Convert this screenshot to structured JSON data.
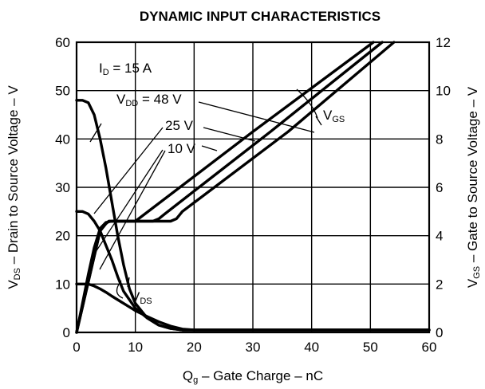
{
  "chart_data": {
    "type": "line",
    "title": "DYNAMIC INPUT CHARACTERISTICS",
    "xlabel": {
      "main": "Q",
      "sub": "g",
      "rest": " – Gate Charge – nC"
    },
    "ylabel_left": {
      "main": "V",
      "sub": "DS",
      "rest": " – Drain to Source Voltage – V"
    },
    "ylabel_right": {
      "main": "V",
      "sub": "GS",
      "rest": " – Gate to Source Voltage – V"
    },
    "xlim": [
      0,
      60
    ],
    "ylim_left": [
      0,
      60
    ],
    "ylim_right": [
      0,
      12
    ],
    "x_ticks": [
      "0",
      "10",
      "20",
      "30",
      "40",
      "50",
      "60"
    ],
    "y_left_ticks": [
      "0",
      "10",
      "20",
      "30",
      "40",
      "50",
      "60"
    ],
    "y_right_ticks": [
      "0",
      "2",
      "4",
      "6",
      "8",
      "10",
      "12"
    ],
    "grid": true,
    "annotations": {
      "id_label": {
        "main": "I",
        "sub": "D",
        "rest": " = 15 A"
      },
      "vdd_label": {
        "main": "V",
        "sub": "DD",
        "rest": " = 48 V"
      },
      "vdd_25": "25 V",
      "vdd_10": "10 V",
      "vgs_label": {
        "main": "V",
        "sub": "GS"
      },
      "vds_label": {
        "main": "V",
        "sub": "DS"
      }
    },
    "series": [
      {
        "name": "48 V",
        "quantity": "VDS",
        "axis": "left",
        "x": [
          0,
          1,
          2,
          3,
          4,
          5,
          6,
          7,
          8,
          9,
          10,
          12,
          14,
          16,
          18,
          20,
          60
        ],
        "y": [
          48,
          48,
          47.5,
          45,
          40,
          34,
          27,
          20,
          14,
          9,
          6,
          3,
          1.5,
          0.8,
          0.5,
          0.5,
          0.5
        ]
      },
      {
        "name": "25 V",
        "quantity": "VDS",
        "axis": "left",
        "x": [
          0,
          1,
          2,
          3,
          4,
          5,
          6,
          7,
          8,
          10,
          12,
          14,
          16,
          18,
          20,
          60
        ],
        "y": [
          25,
          25,
          24.5,
          23,
          21,
          18,
          15,
          11.5,
          8.5,
          5,
          3,
          1.5,
          0.8,
          0.5,
          0.5,
          0.5
        ]
      },
      {
        "name": "10 V",
        "quantity": "VDS",
        "axis": "left",
        "x": [
          0,
          1,
          2,
          3,
          4,
          5,
          6,
          8,
          10,
          12,
          14,
          16,
          18,
          20,
          60
        ],
        "y": [
          10,
          10,
          10,
          9.6,
          9,
          8.3,
          7.5,
          6,
          4.5,
          3.3,
          2.2,
          1.3,
          0.7,
          0.5,
          0.5
        ]
      },
      {
        "name": "10 V",
        "quantity": "VGS",
        "axis": "right",
        "x": [
          0,
          1,
          2,
          3,
          4,
          5,
          6,
          7,
          10,
          30,
          50.5
        ],
        "y": [
          0,
          1.2,
          2.4,
          3.5,
          4.3,
          4.55,
          4.6,
          4.6,
          4.6,
          8.3,
          12
        ]
      },
      {
        "name": "25 V",
        "quantity": "VGS",
        "axis": "right",
        "x": [
          0,
          4,
          5,
          5.5,
          6,
          7,
          10,
          12,
          13,
          14,
          15,
          33,
          52
        ],
        "y": [
          0,
          4.2,
          4.5,
          4.6,
          4.6,
          4.6,
          4.6,
          4.6,
          4.6,
          4.7,
          4.9,
          8.3,
          12
        ]
      },
      {
        "name": "48 V",
        "quantity": "VGS",
        "axis": "right",
        "x": [
          0,
          4,
          5,
          5.5,
          6,
          7,
          10,
          14,
          16,
          17,
          18,
          36,
          54
        ],
        "y": [
          0,
          4.2,
          4.5,
          4.6,
          4.6,
          4.6,
          4.6,
          4.6,
          4.6,
          4.7,
          5.0,
          8.3,
          12
        ]
      }
    ]
  }
}
